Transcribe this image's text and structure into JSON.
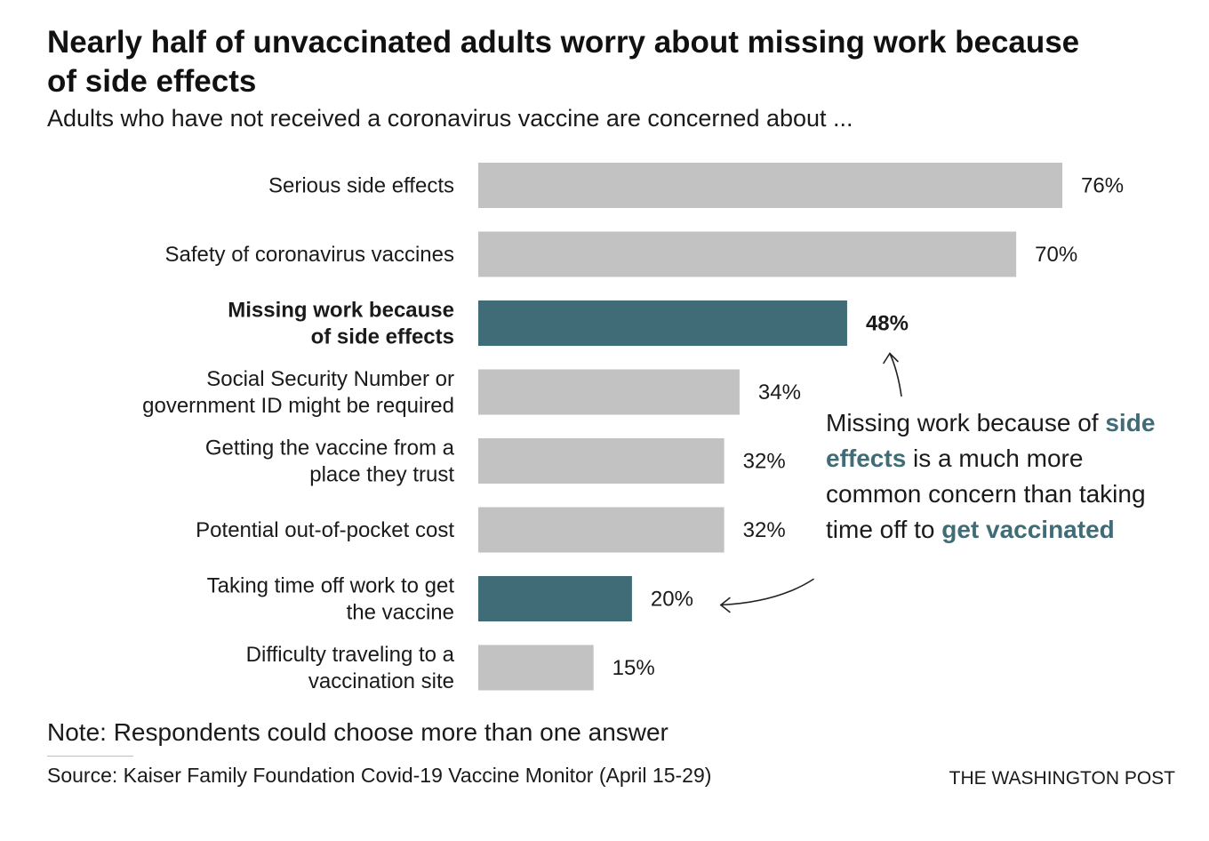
{
  "header": {
    "title": "Nearly half of unvaccinated adults worry about missing work because of side effects",
    "subtitle": "Adults who have not received a coronavirus vaccine are concerned about ..."
  },
  "chart_data": {
    "type": "bar",
    "orientation": "horizontal",
    "title": "Nearly half of unvaccinated adults worry about missing work because of side effects",
    "subtitle": "Adults who have not received a coronavirus vaccine are concerned about ...",
    "xlabel": "",
    "ylabel": "",
    "xlim": [
      0,
      76
    ],
    "grid": false,
    "legend": "none",
    "unit": "%",
    "categories": [
      "Serious side effects",
      "Safety of coronavirus vaccines",
      "Missing work because of side effects",
      "Social Security Number or government ID might be required",
      "Getting the vaccine from a place they trust",
      "Potential out-of-pocket cost",
      "Taking time off work to get the vaccine",
      "Difficulty traveling to a vaccination site"
    ],
    "label_lines": [
      [
        "Serious side effects"
      ],
      [
        "Safety of coronavirus vaccines"
      ],
      [
        "Missing work because",
        "of side effects"
      ],
      [
        "Social Security Number or",
        "government ID might be required"
      ],
      [
        "Getting the vaccine from a",
        "place they trust"
      ],
      [
        "Potential out-of-pocket cost"
      ],
      [
        "Taking time off work to get",
        "the vaccine"
      ],
      [
        "Difficulty traveling to a",
        "vaccination site"
      ]
    ],
    "values": [
      76,
      70,
      48,
      34,
      32,
      32,
      20,
      15
    ],
    "value_labels": [
      "76%",
      "70%",
      "48%",
      "34%",
      "32%",
      "32%",
      "20%",
      "15%"
    ],
    "highlighted": [
      false,
      false,
      true,
      false,
      false,
      false,
      true,
      false
    ],
    "bold_label": [
      false,
      false,
      true,
      false,
      false,
      false,
      false,
      false
    ],
    "colors": {
      "default": "#c2c2c2",
      "highlight": "#3f6c76",
      "highlight_text": "#3f6c76"
    },
    "annotation": {
      "part1": "Missing work because of ",
      "highlight1": "side effects",
      "part2": " is a much more common concern than taking time off to ",
      "highlight2": "get vaccinated"
    }
  },
  "footer": {
    "note": "Note: Respondents could choose more than one answer",
    "source": "Source: Kaiser Family Foundation Covid-19 Vaccine Monitor (April 15-29)",
    "credit": "THE WASHINGTON POST"
  }
}
